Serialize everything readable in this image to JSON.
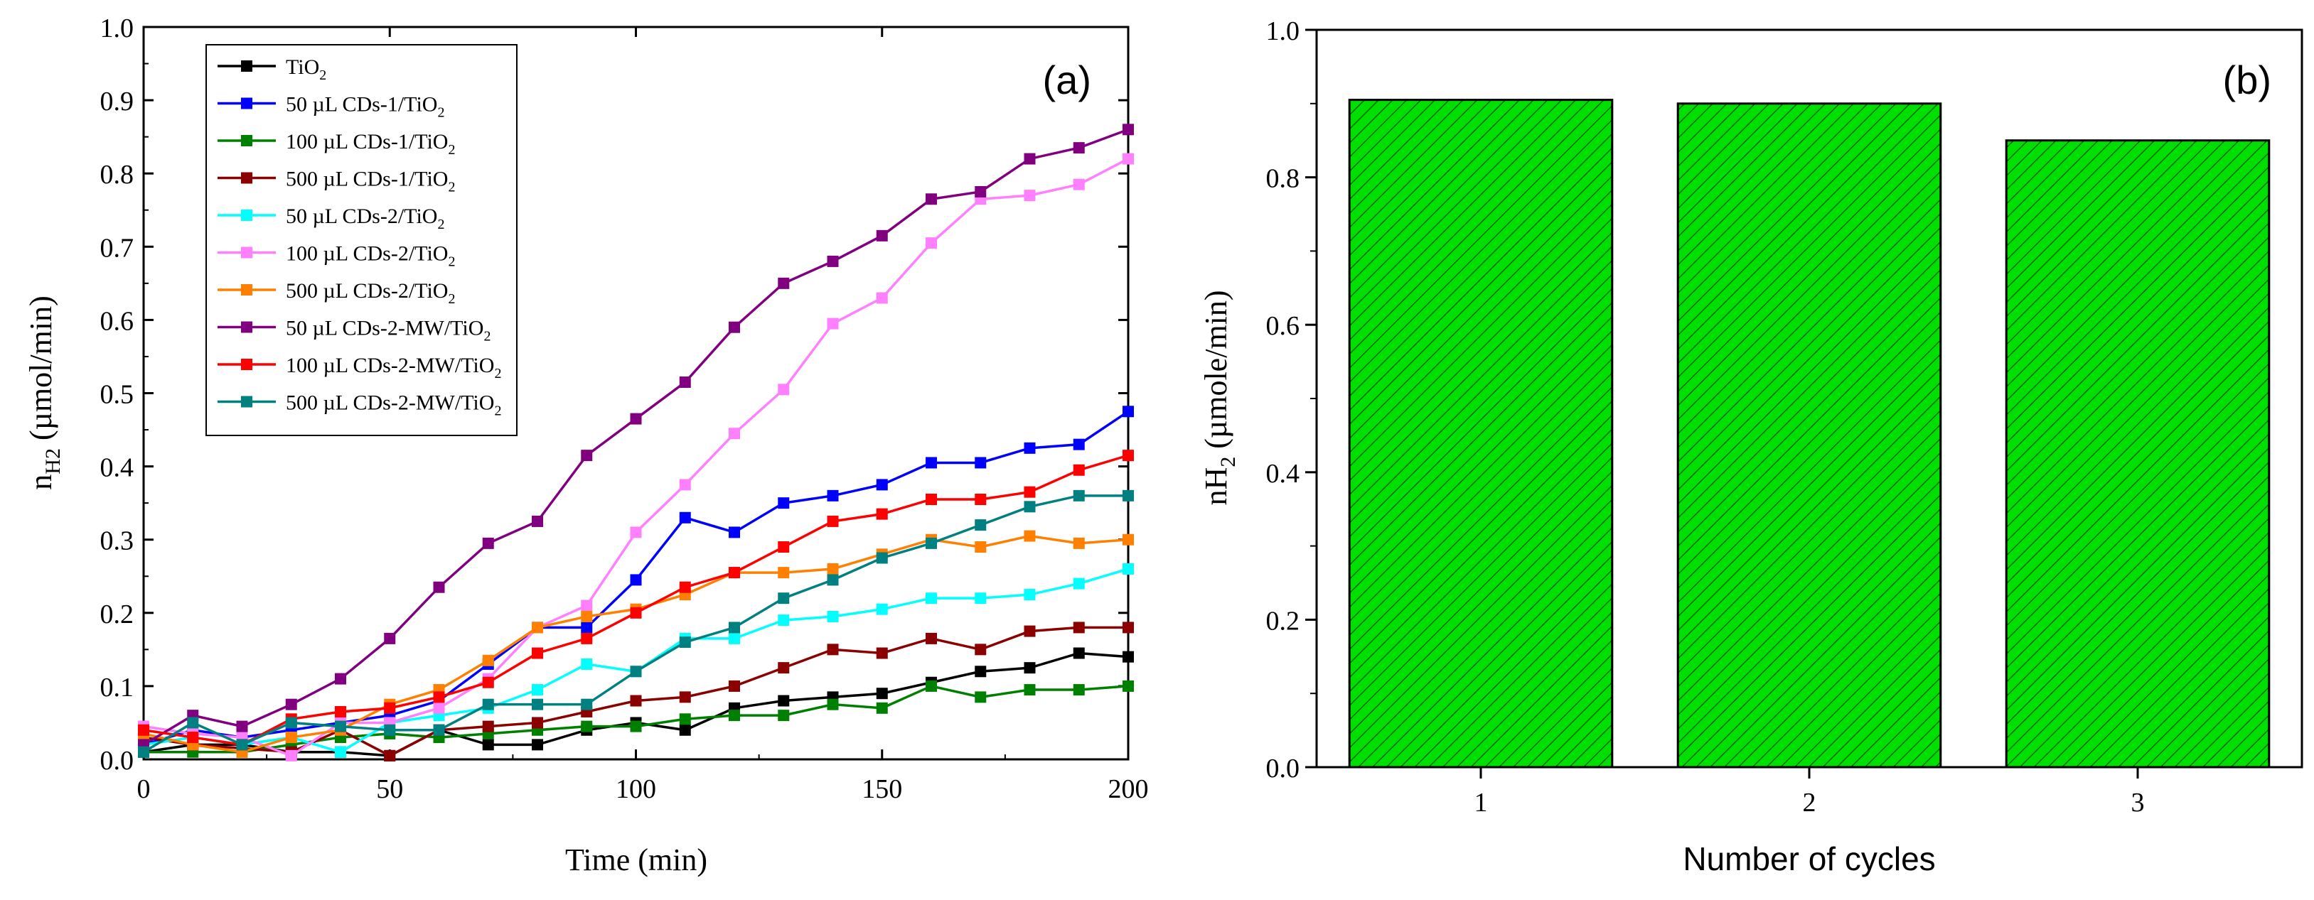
{
  "chart_data": [
    {
      "type": "line",
      "panel_label": "(a)",
      "xlabel": "Time (min)",
      "ylabel": {
        "main": "n",
        "sub": "H2",
        "rest": " (µmol/min)"
      },
      "xlim": [
        0,
        200
      ],
      "ylim": [
        0,
        1.0
      ],
      "x_ticks": [
        "0",
        "50",
        "100",
        "150",
        "200"
      ],
      "y_ticks": [
        "0.0",
        "0.1",
        "0.2",
        "0.3",
        "0.4",
        "0.5",
        "0.6",
        "0.7",
        "0.8",
        "0.9",
        "1.0"
      ],
      "x": [
        0,
        10,
        20,
        30,
        40,
        50,
        60,
        70,
        80,
        90,
        100,
        110,
        120,
        130,
        140,
        150,
        160,
        170,
        180,
        190,
        200
      ],
      "legend_position": "top-left",
      "series": [
        {
          "name": "TiO",
          "sub": "2",
          "color": "#000000",
          "values": [
            0.01,
            0.02,
            0.02,
            0.01,
            0.01,
            0.005,
            0.04,
            0.02,
            0.02,
            0.04,
            0.05,
            0.04,
            0.07,
            0.08,
            0.085,
            0.09,
            0.105,
            0.12,
            0.125,
            0.145,
            0.14
          ]
        },
        {
          "name": "50 µL CDs-1/TiO",
          "sub": "2",
          "color": "#0000ff",
          "values": [
            0.02,
            0.04,
            0.03,
            0.04,
            0.05,
            0.06,
            0.08,
            0.13,
            0.18,
            0.18,
            0.245,
            0.33,
            0.31,
            0.35,
            0.36,
            0.375,
            0.405,
            0.405,
            0.425,
            0.43,
            0.475
          ]
        },
        {
          "name": "100 µL CDs-1/TiO",
          "sub": "2",
          "color": "#008000",
          "values": [
            0.01,
            0.01,
            0.01,
            0.02,
            0.03,
            0.035,
            0.03,
            0.035,
            0.04,
            0.045,
            0.045,
            0.055,
            0.06,
            0.06,
            0.075,
            0.07,
            0.1,
            0.085,
            0.095,
            0.095,
            0.1
          ]
        },
        {
          "name": "500 µL CDs-1/TiO",
          "sub": "2",
          "color": "#8b0000",
          "values": [
            0.03,
            0.02,
            0.015,
            0.01,
            0.04,
            0.005,
            0.04,
            0.045,
            0.05,
            0.065,
            0.08,
            0.085,
            0.1,
            0.125,
            0.15,
            0.145,
            0.165,
            0.15,
            0.175,
            0.18,
            0.18
          ]
        },
        {
          "name": "50 µL CDs-2/TiO",
          "sub": "2",
          "color": "#00ffff",
          "values": [
            0.02,
            0.03,
            0.02,
            0.03,
            0.01,
            0.05,
            0.06,
            0.07,
            0.095,
            0.13,
            0.12,
            0.165,
            0.165,
            0.19,
            0.195,
            0.205,
            0.22,
            0.22,
            0.225,
            0.24,
            0.26
          ]
        },
        {
          "name": "100 µL CDs-2/TiO",
          "sub": "2",
          "color": "#ff80ff",
          "values": [
            0.045,
            0.035,
            0.03,
            0.005,
            0.05,
            0.05,
            0.07,
            0.11,
            0.18,
            0.21,
            0.31,
            0.375,
            0.445,
            0.505,
            0.595,
            0.63,
            0.705,
            0.765,
            0.77,
            0.785,
            0.82
          ]
        },
        {
          "name": "500 µL CDs-2/TiO",
          "sub": "2",
          "color": "#ff8000",
          "values": [
            0.035,
            0.02,
            0.01,
            0.03,
            0.04,
            0.075,
            0.095,
            0.135,
            0.18,
            0.195,
            0.205,
            0.225,
            0.255,
            0.255,
            0.26,
            0.28,
            0.3,
            0.29,
            0.305,
            0.295,
            0.3
          ]
        },
        {
          "name": "50 µL CDs-2-MW/TiO",
          "sub": "2",
          "color": "#800080",
          "values": [
            0.02,
            0.06,
            0.045,
            0.075,
            0.11,
            0.165,
            0.235,
            0.295,
            0.325,
            0.415,
            0.465,
            0.515,
            0.59,
            0.65,
            0.68,
            0.715,
            0.765,
            0.775,
            0.82,
            0.835,
            0.86
          ]
        },
        {
          "name": "100 µL CDs-2-MW/TiO",
          "sub": "2",
          "color": "#ff0000",
          "values": [
            0.04,
            0.03,
            0.02,
            0.055,
            0.065,
            0.07,
            0.085,
            0.105,
            0.145,
            0.165,
            0.2,
            0.235,
            0.255,
            0.29,
            0.325,
            0.335,
            0.355,
            0.355,
            0.365,
            0.395,
            0.415
          ]
        },
        {
          "name": "500 µL CDs-2-MW/TiO",
          "sub": "2",
          "color": "#008080",
          "values": [
            0.01,
            0.05,
            0.02,
            0.05,
            0.045,
            0.04,
            0.04,
            0.075,
            0.075,
            0.075,
            0.12,
            0.16,
            0.18,
            0.22,
            0.245,
            0.275,
            0.295,
            0.32,
            0.345,
            0.36,
            0.36
          ]
        }
      ]
    },
    {
      "type": "bar",
      "panel_label": "(b)",
      "xlabel": "Number of cycles",
      "ylabel": {
        "main": "nH",
        "sub": "2",
        "rest": " (µmole/min)"
      },
      "categories": [
        "1",
        "2",
        "3"
      ],
      "values": [
        0.905,
        0.9,
        0.85
      ],
      "ylim": [
        0,
        1.0
      ],
      "y_ticks": [
        "0.0",
        "0.2",
        "0.4",
        "0.6",
        "0.8",
        "1.0"
      ],
      "bar_color": "#00e000",
      "bar_hatch_color": "#006400"
    }
  ]
}
